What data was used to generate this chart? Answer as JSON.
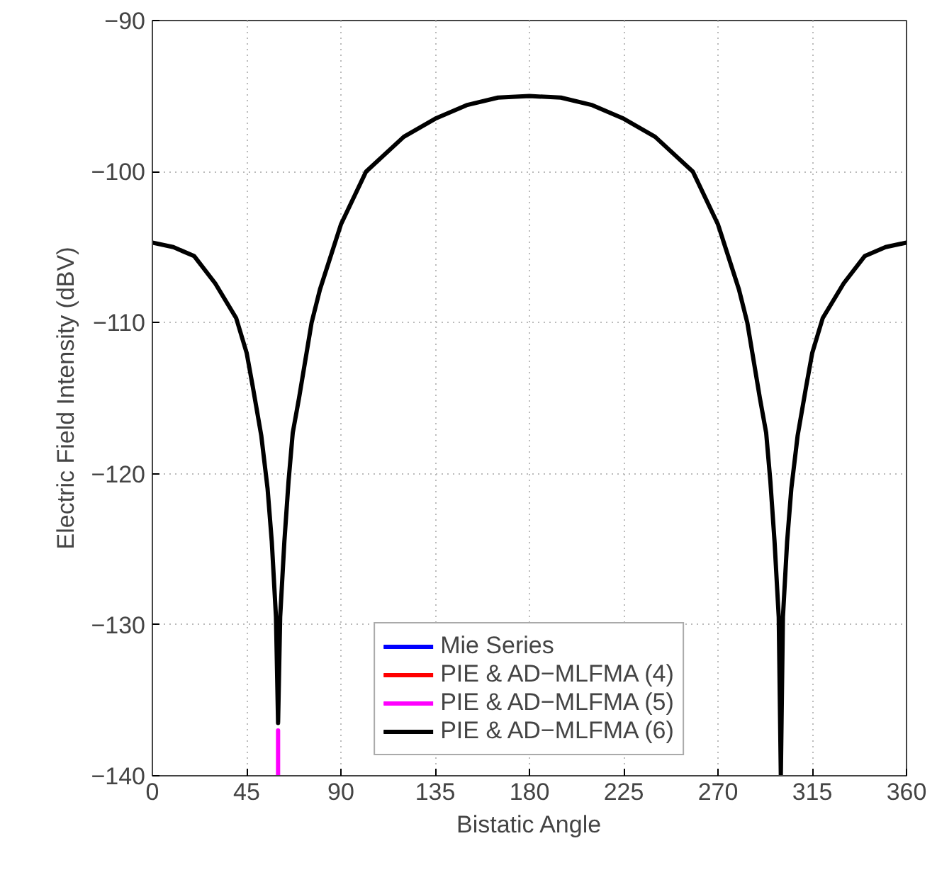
{
  "chart_data": {
    "type": "line",
    "xlabel": "Bistatic Angle",
    "ylabel": "Electric Field Intensity (dBV)",
    "x": [
      0,
      10,
      20,
      30,
      40,
      45,
      48,
      52,
      55,
      57,
      59,
      60,
      61,
      63,
      65,
      67,
      70,
      76,
      80,
      90,
      102,
      120,
      135,
      150,
      165,
      180,
      195,
      210,
      225,
      240,
      258,
      270,
      280,
      284,
      290,
      293,
      295,
      297,
      299,
      300,
      301,
      303,
      305,
      308,
      312,
      315,
      320,
      330,
      340,
      350,
      360
    ],
    "series": [
      {
        "name": "Mie Series",
        "color": "#0000ff",
        "values": [
          null,
          null,
          null,
          null,
          null,
          null,
          null,
          null,
          null,
          null,
          null,
          null,
          null,
          null,
          null,
          null,
          null,
          null,
          null,
          null,
          null,
          null,
          null,
          null,
          null,
          null,
          null,
          null,
          null,
          null,
          null,
          null,
          null,
          null,
          null,
          null,
          null,
          null,
          null,
          null,
          null,
          null,
          null,
          null,
          null,
          null,
          null,
          null,
          null,
          null,
          null
        ]
      },
      {
        "name": "PIE & AD−MLFMA (4)",
        "color": "#ff0000",
        "values": [
          null,
          null,
          null,
          null,
          null,
          null,
          null,
          null,
          null,
          null,
          null,
          null,
          null,
          null,
          null,
          null,
          null,
          null,
          null,
          null,
          null,
          null,
          null,
          null,
          null,
          null,
          null,
          null,
          null,
          null,
          null,
          null,
          null,
          null,
          null,
          null,
          null,
          null,
          null,
          null,
          null,
          null,
          null,
          null,
          null,
          null,
          null,
          null,
          null,
          null,
          null
        ]
      },
      {
        "name": "PIE & AD−MLFMA (5)",
        "color": "#ff00ff",
        "x": [
          60,
          60
        ],
        "values": [
          -137,
          -140
        ]
      },
      {
        "name": "PIE & AD−MLFMA (6)",
        "color": "#000000",
        "values": [
          -104.7,
          -105.0,
          -105.6,
          -107.4,
          -109.7,
          -112,
          -114.3,
          -117.5,
          -121,
          -124.5,
          -129.5,
          -136.5,
          -129.5,
          -124.5,
          -120.5,
          -117.3,
          -115,
          -110,
          -107.8,
          -103.5,
          -100,
          -97.7,
          -96.5,
          -95.6,
          -95.1,
          -95,
          -95.1,
          -95.6,
          -96.5,
          -97.7,
          -100,
          -103.5,
          -107.8,
          -110,
          -115,
          -117.3,
          -120.5,
          -124.5,
          -129.5,
          -140,
          -129.5,
          -124.5,
          -121,
          -117.5,
          -114.3,
          -112,
          -109.7,
          -107.4,
          -105.6,
          -105.0,
          -104.7
        ]
      }
    ],
    "xlim": [
      0,
      360
    ],
    "xticks": [
      0,
      45,
      90,
      135,
      180,
      225,
      270,
      315,
      360
    ],
    "ylim": [
      -140,
      -90
    ],
    "yticks": [
      -140,
      -130,
      -120,
      -110,
      -100,
      -90
    ],
    "grid": true,
    "legend": "bottom",
    "line_style": "solid",
    "marker": "none"
  }
}
